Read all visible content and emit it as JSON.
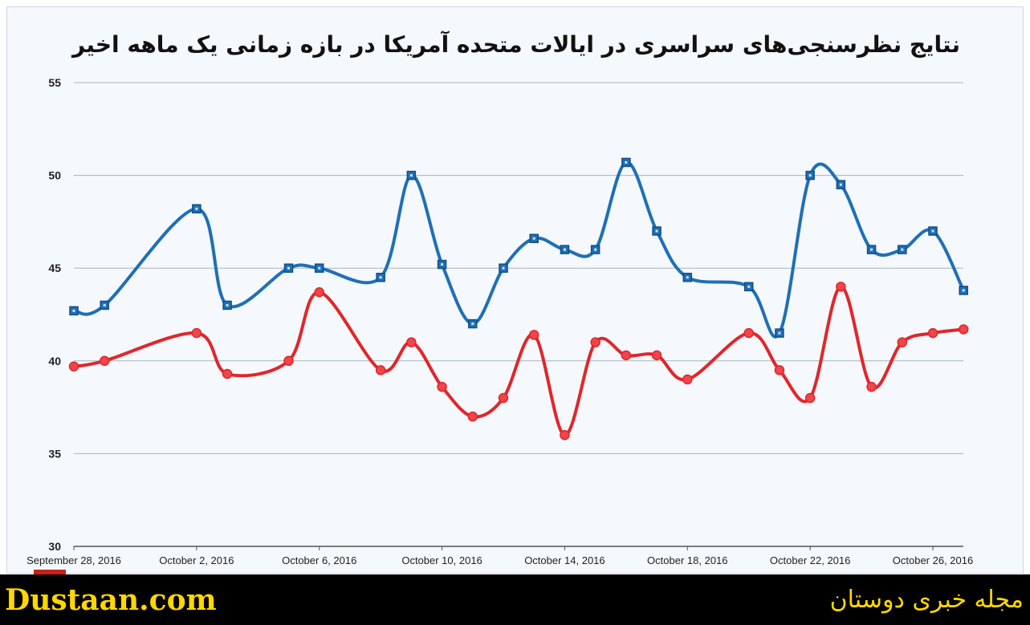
{
  "chart_data": {
    "type": "line",
    "title": "نتایج نظرسنجی‌های سراسری در ایالات متحده آمریکا در بازه زمانی یک ماهه اخیر",
    "xlabel": "",
    "ylabel": "",
    "ylim": [
      30,
      55
    ],
    "y_ticks": [
      "55",
      "50",
      "45",
      "40",
      "35",
      "30"
    ],
    "x_ticks": [
      "September 28, 2016",
      "October 2, 2016",
      "October 6, 2016",
      "October 10, 2016",
      "October 14, 2016",
      "October 18, 2016",
      "October 22, 2016",
      "October 26, 2016"
    ],
    "x_start": "2016-09-28",
    "x_end": "2016-10-26",
    "grid": true,
    "legend": "none",
    "series": [
      {
        "color": "#1f6fb5",
        "marker": "square",
        "points": [
          {
            "x": "2016-09-28",
            "y": 42.7
          },
          {
            "x": "2016-09-29",
            "y": 43.0
          },
          {
            "x": "2016-10-02",
            "y": 48.2
          },
          {
            "x": "2016-10-03",
            "y": 43.0
          },
          {
            "x": "2016-10-05",
            "y": 45.0
          },
          {
            "x": "2016-10-06",
            "y": 45.0
          },
          {
            "x": "2016-10-08",
            "y": 44.5
          },
          {
            "x": "2016-10-09",
            "y": 50.0
          },
          {
            "x": "2016-10-10",
            "y": 45.2
          },
          {
            "x": "2016-10-11",
            "y": 42.0
          },
          {
            "x": "2016-10-12",
            "y": 45.0
          },
          {
            "x": "2016-10-13",
            "y": 46.6
          },
          {
            "x": "2016-10-14",
            "y": 46.0
          },
          {
            "x": "2016-10-15",
            "y": 46.0
          },
          {
            "x": "2016-10-16",
            "y": 50.7
          },
          {
            "x": "2016-10-17",
            "y": 47.0
          },
          {
            "x": "2016-10-18",
            "y": 44.5
          },
          {
            "x": "2016-10-20",
            "y": 44.0
          },
          {
            "x": "2016-10-21",
            "y": 41.5
          },
          {
            "x": "2016-10-22",
            "y": 50.0
          },
          {
            "x": "2016-10-23",
            "y": 49.5
          },
          {
            "x": "2016-10-24",
            "y": 46.0
          },
          {
            "x": "2016-10-25",
            "y": 46.0
          },
          {
            "x": "2016-10-26",
            "y": 47.0
          },
          {
            "x": "2016-10-27",
            "y": 43.8
          }
        ]
      },
      {
        "color": "#e0262b",
        "marker": "circle",
        "points": [
          {
            "x": "2016-09-28",
            "y": 39.7
          },
          {
            "x": "2016-09-29",
            "y": 40.0
          },
          {
            "x": "2016-10-02",
            "y": 41.5
          },
          {
            "x": "2016-10-03",
            "y": 39.3
          },
          {
            "x": "2016-10-05",
            "y": 40.0
          },
          {
            "x": "2016-10-06",
            "y": 43.7
          },
          {
            "x": "2016-10-08",
            "y": 39.5
          },
          {
            "x": "2016-10-09",
            "y": 41.0
          },
          {
            "x": "2016-10-10",
            "y": 38.6
          },
          {
            "x": "2016-10-11",
            "y": 37.0
          },
          {
            "x": "2016-10-12",
            "y": 38.0
          },
          {
            "x": "2016-10-13",
            "y": 41.4
          },
          {
            "x": "2016-10-14",
            "y": 36.0
          },
          {
            "x": "2016-10-15",
            "y": 41.0
          },
          {
            "x": "2016-10-16",
            "y": 40.3
          },
          {
            "x": "2016-10-17",
            "y": 40.3
          },
          {
            "x": "2016-10-18",
            "y": 39.0
          },
          {
            "x": "2016-10-20",
            "y": 41.5
          },
          {
            "x": "2016-10-21",
            "y": 39.5
          },
          {
            "x": "2016-10-22",
            "y": 38.0
          },
          {
            "x": "2016-10-23",
            "y": 44.0
          },
          {
            "x": "2016-10-24",
            "y": 38.6
          },
          {
            "x": "2016-10-25",
            "y": 41.0
          },
          {
            "x": "2016-10-26",
            "y": 41.5
          },
          {
            "x": "2016-10-27",
            "y": 41.7
          }
        ]
      }
    ]
  },
  "footer": {
    "site": "Dustaan.com",
    "tagline": "مجله خبری دوستان"
  }
}
